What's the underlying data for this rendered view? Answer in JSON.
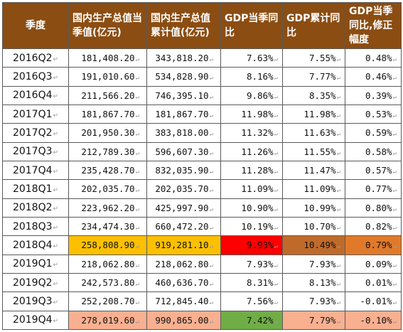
{
  "table": {
    "headers": [
      "季度",
      "国内生产总值当季值(亿元)",
      "国内生产总值累计值(亿元)",
      "GDP当季同比",
      "GDP累计同比",
      "GDP当季同比,修正幅度"
    ],
    "rows": [
      {
        "cells": [
          "2016Q2",
          "181,408.20",
          "343,818.20",
          "7.63%",
          "7.55%",
          "0.48%"
        ],
        "colors": [
          null,
          null,
          null,
          null,
          null,
          null
        ]
      },
      {
        "cells": [
          "2016Q3",
          "191,010.60",
          "534,828.90",
          "8.16%",
          "7.77%",
          "0.46%"
        ],
        "colors": [
          null,
          null,
          null,
          null,
          null,
          null
        ]
      },
      {
        "cells": [
          "2016Q4",
          "211,566.20",
          "746,395.10",
          "9.86%",
          "8.35%",
          "0.39%"
        ],
        "colors": [
          null,
          null,
          null,
          null,
          null,
          null
        ]
      },
      {
        "cells": [
          "2017Q1",
          "181,867.70",
          "181,867.70",
          "11.98%",
          "11.98%",
          "0.53%"
        ],
        "colors": [
          null,
          null,
          null,
          null,
          null,
          null
        ]
      },
      {
        "cells": [
          "2017Q2",
          "201,950.30",
          "383,818.00",
          "11.32%",
          "11.63%",
          "0.59%"
        ],
        "colors": [
          null,
          null,
          null,
          null,
          null,
          null
        ]
      },
      {
        "cells": [
          "2017Q3",
          "212,789.30",
          "596,607.30",
          "11.26%",
          "11.55%",
          "0.58%"
        ],
        "colors": [
          null,
          null,
          null,
          null,
          null,
          null
        ]
      },
      {
        "cells": [
          "2017Q4",
          "235,428.70",
          "832,035.90",
          "11.28%",
          "11.47%",
          "0.57%"
        ],
        "colors": [
          null,
          null,
          null,
          null,
          null,
          null
        ]
      },
      {
        "cells": [
          "2018Q1",
          "202,035.70",
          "202,035.70",
          "11.09%",
          "11.09%",
          "0.77%"
        ],
        "colors": [
          null,
          null,
          null,
          null,
          null,
          null
        ]
      },
      {
        "cells": [
          "2018Q2",
          "223,962.20",
          "425,997.90",
          "10.90%",
          "10.99%",
          "0.80%"
        ],
        "colors": [
          null,
          null,
          null,
          null,
          null,
          null
        ]
      },
      {
        "cells": [
          "2018Q3",
          "234,474.30",
          "660,472.20",
          "10.19%",
          "10.70%",
          "0.82%"
        ],
        "colors": [
          null,
          null,
          null,
          null,
          null,
          null
        ]
      },
      {
        "cells": [
          "2018Q4",
          "258,808.90",
          "919,281.10",
          "9.93%",
          "10.49%",
          "0.79%"
        ],
        "colors": [
          null,
          "#fcc000",
          "#fcc000",
          "#ff0000",
          "#c06a2a",
          "#e07a2a"
        ]
      },
      {
        "cells": [
          "2019Q1",
          "218,062.80",
          "218,062.80",
          "7.93%",
          "7.93%",
          "0.09%"
        ],
        "colors": [
          null,
          null,
          null,
          null,
          null,
          null
        ]
      },
      {
        "cells": [
          "2019Q2",
          "242,573.80",
          "460,636.70",
          "8.31%",
          "8.13%",
          "0.01%"
        ],
        "colors": [
          null,
          null,
          null,
          null,
          null,
          null
        ]
      },
      {
        "cells": [
          "2019Q3",
          "252,208.70",
          "712,845.40",
          "7.56%",
          "7.93%",
          "-0.01%"
        ],
        "colors": [
          null,
          null,
          null,
          null,
          null,
          null
        ]
      },
      {
        "cells": [
          "2019Q4",
          "278,019.60",
          "990,865.00",
          "7.42%",
          "7.79%",
          "-0.10%"
        ],
        "colors": [
          null,
          "#f8b090",
          "#f8b090",
          "#70ad47",
          "#f8b090",
          "#f8b090"
        ]
      }
    ]
  }
}
